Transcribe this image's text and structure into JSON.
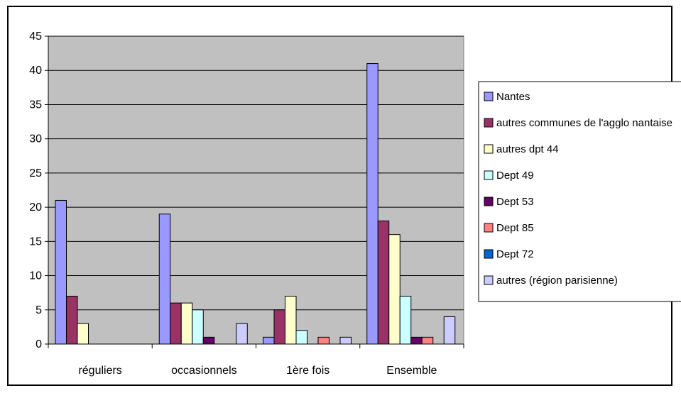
{
  "chart_data": {
    "type": "bar",
    "title": "",
    "xlabel": "",
    "ylabel": "",
    "ylim": [
      0,
      45
    ],
    "ytick_step": 5,
    "grid": true,
    "legend_position": "right",
    "plot_background": "#c0c0c0",
    "categories": [
      "réguliers",
      "occasionnels",
      "1ère fois",
      "Ensemble"
    ],
    "series": [
      {
        "name": "Nantes",
        "color": "#9999ff",
        "values": [
          21,
          19,
          1,
          41
        ]
      },
      {
        "name": "autres communes de l'agglo nantaise",
        "color": "#993366",
        "values": [
          7,
          6,
          5,
          18
        ]
      },
      {
        "name": "autres dpt 44",
        "color": "#ffffcc",
        "values": [
          3,
          6,
          7,
          16
        ]
      },
      {
        "name": "Dept 49",
        "color": "#ccffff",
        "values": [
          0,
          5,
          2,
          7
        ]
      },
      {
        "name": "Dept 53",
        "color": "#660066",
        "values": [
          0,
          1,
          0,
          1
        ]
      },
      {
        "name": "Dept 85",
        "color": "#ff8080",
        "values": [
          0,
          0,
          1,
          1
        ]
      },
      {
        "name": "Dept 72",
        "color": "#0066cc",
        "values": [
          0,
          0,
          0,
          0
        ]
      },
      {
        "name": "autres (région parisienne)",
        "color": "#ccccff",
        "values": [
          0,
          3,
          1,
          4
        ]
      }
    ]
  }
}
